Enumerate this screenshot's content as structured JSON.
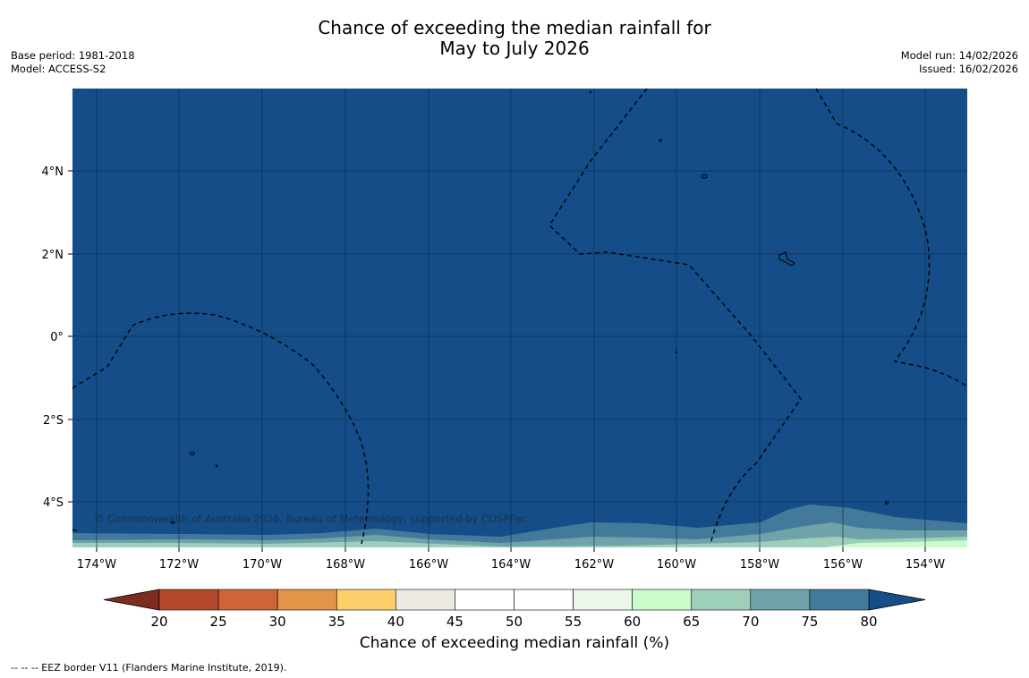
{
  "title": {
    "line1": "Chance of exceeding the median rainfall for",
    "line2": "May to July 2026"
  },
  "meta_left": {
    "base_period": "Base period: 1981-2018",
    "model": "Model: ACCESS-S2"
  },
  "meta_right": {
    "model_run": "Model run: 14/02/2026",
    "issued": "Issued: 16/02/2026"
  },
  "map": {
    "lon_range": [
      -174.6,
      -153.0
    ],
    "lat_range": [
      -5.2,
      5.8
    ],
    "lon_ticks": [
      "174°W",
      "172°W",
      "170°W",
      "168°W",
      "166°W",
      "164°W",
      "162°W",
      "160°W",
      "158°W",
      "156°W",
      "154°W"
    ],
    "lat_ticks": [
      "4°N",
      "2°N",
      "0°",
      "2°S",
      "4°S"
    ],
    "copyright": "© Commonwealth of Australia 2026, Bureau of Meteorology, supported by COSPPac",
    "colors": {
      "dominant": "#144d87",
      "band_75_80": "#437a9c",
      "band_70_75": "#6fa3a9",
      "band_65_70": "#9ecfb9",
      "band_60_65": "#c9fccb"
    }
  },
  "colorbar": {
    "label": "Chance of exceeding median rainfall (%)",
    "ticks": [
      "20",
      "25",
      "30",
      "35",
      "40",
      "45",
      "50",
      "55",
      "60",
      "65",
      "70",
      "75",
      "80"
    ],
    "colors": [
      "#b5482b",
      "#d06437",
      "#e29448",
      "#fdcf6b",
      "#edeae3",
      "#ffffff",
      "#ffffff",
      "#ecf7ec",
      "#c9fccb",
      "#9ecfb9",
      "#6fa3a9",
      "#437a9c"
    ],
    "under_color": "#7e2c1d",
    "over_color": "#144d87"
  },
  "footnote": "--  --  -- EEZ border V11 (Flanders Marine Institute, 2019)."
}
